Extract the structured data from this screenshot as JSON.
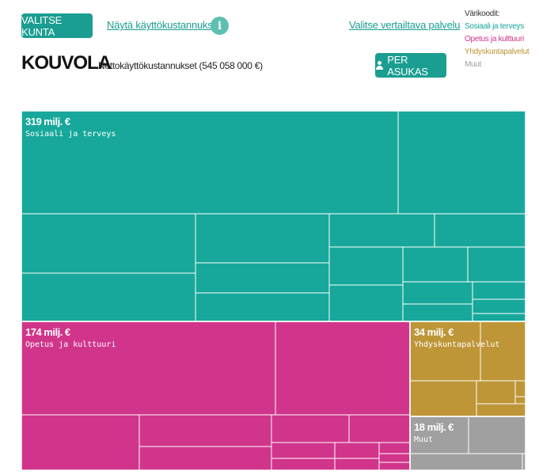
{
  "header": {
    "select_municipality": "VALITSE KUNTA",
    "show_costs": "Näytä käyttökustannukset",
    "info_symbol": "i",
    "compare_service": "Valitse vertailtava palvelu",
    "per_resident": "PER ASUKAS",
    "municipality": "KOUVOLA",
    "net_costs": "Nettokäyttökustannukset (545 058 000 €)"
  },
  "legend": {
    "title": "Värikoodit:",
    "items": [
      {
        "label": "Sosiaali ja terveys",
        "color": "#17a89b"
      },
      {
        "label": "Opetus ja kulttuuri",
        "color": "#d1358b"
      },
      {
        "label": "Yhdyskuntapalvelut",
        "color": "#be9637"
      },
      {
        "label": "Muut",
        "color": "#a0a0a0"
      }
    ]
  },
  "chart_data": {
    "type": "treemap",
    "total_eur": 545058000,
    "categories": [
      {
        "name": "Sosiaali ja terveys",
        "value_label": "319 milj. €",
        "value_milj": 319,
        "color": "#17a89b"
      },
      {
        "name": "Opetus ja kulttuuri",
        "value_label": "174 milj. €",
        "value_milj": 174,
        "color": "#d1358b"
      },
      {
        "name": "Yhdyskuntapalvelut",
        "value_label": "34 milj. €",
        "value_milj": 34,
        "color": "#be9637"
      },
      {
        "name": "Muut",
        "value_label": "18 milj. €",
        "value_milj": 18,
        "color": "#a0a0a0"
      }
    ]
  }
}
